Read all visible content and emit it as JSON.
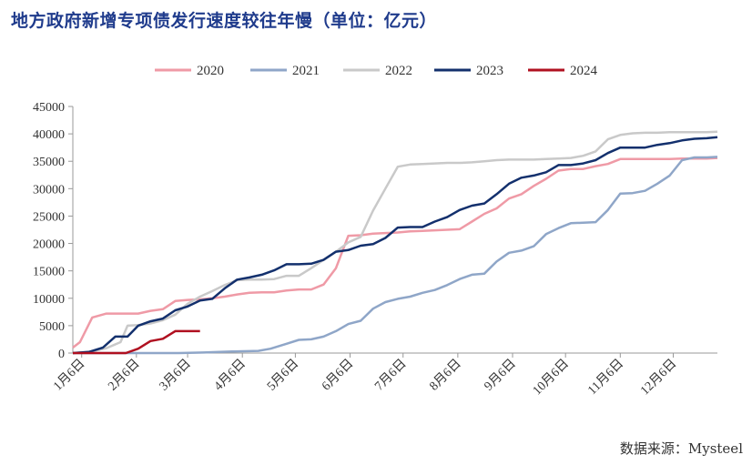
{
  "title": "地方政府新增专项债发行速度较往年慢（单位：亿元）",
  "source": "数据来源：Mysteel",
  "chart_data": {
    "type": "line",
    "title": "地方政府新增专项债发行速度较往年慢（单位：亿元）",
    "x_tick_labels": [
      "1月6日",
      "2月6日",
      "3月6日",
      "4月6日",
      "5月6日",
      "6月6日",
      "7月6日",
      "8月6日",
      "9月6日",
      "10月6日",
      "11月6日",
      "12月6日"
    ],
    "xlim": [
      "01-01",
      "12-31"
    ],
    "ylim": [
      0,
      45000
    ],
    "y_ticks": [
      0,
      5000,
      10000,
      15000,
      20000,
      25000,
      30000,
      35000,
      40000,
      45000
    ],
    "grid": "none",
    "legend_position": "top",
    "series": [
      {
        "name": "2020",
        "color": "#ef9aa6",
        "x": [
          "01-01",
          "01-05",
          "01-12",
          "01-20",
          "01-31",
          "02-07",
          "02-14",
          "02-21",
          "02-28",
          "03-06",
          "03-13",
          "03-20",
          "03-27",
          "04-03",
          "04-10",
          "04-17",
          "04-24",
          "05-01",
          "05-08",
          "05-15",
          "05-22",
          "05-29",
          "06-05",
          "06-12",
          "06-19",
          "06-26",
          "07-03",
          "07-10",
          "07-17",
          "07-24",
          "07-31",
          "08-07",
          "08-14",
          "08-21",
          "08-28",
          "09-04",
          "09-11",
          "09-18",
          "09-25",
          "10-02",
          "10-09",
          "10-16",
          "10-23",
          "10-30",
          "11-06",
          "11-13",
          "11-20",
          "11-27",
          "12-04",
          "12-11",
          "12-18",
          "12-25",
          "12-31"
        ],
        "y": [
          1000,
          2000,
          6500,
          7200,
          7200,
          7200,
          7700,
          8000,
          9500,
          9700,
          9800,
          10000,
          10300,
          10700,
          11000,
          11100,
          11100,
          11400,
          11600,
          11600,
          12500,
          15500,
          21400,
          21500,
          21800,
          21900,
          22000,
          22200,
          22300,
          22400,
          22500,
          22600,
          24000,
          25400,
          26400,
          28200,
          29000,
          30500,
          31800,
          33300,
          33600,
          33600,
          34100,
          34500,
          35400,
          35400,
          35400,
          35400,
          35400,
          35500,
          35500,
          35500,
          35600
        ]
      },
      {
        "name": "2021",
        "color": "#8fa6c8",
        "x": [
          "01-01",
          "01-15",
          "02-01",
          "02-15",
          "03-01",
          "03-15",
          "04-01",
          "04-15",
          "04-22",
          "05-01",
          "05-08",
          "05-15",
          "05-22",
          "05-29",
          "06-05",
          "06-12",
          "06-19",
          "06-26",
          "07-03",
          "07-10",
          "07-17",
          "07-24",
          "07-31",
          "08-07",
          "08-14",
          "08-21",
          "08-28",
          "09-04",
          "09-11",
          "09-18",
          "09-25",
          "10-02",
          "10-09",
          "10-16",
          "10-23",
          "10-30",
          "11-06",
          "11-13",
          "11-20",
          "11-27",
          "12-04",
          "12-11",
          "12-18",
          "12-25",
          "12-31"
        ],
        "y": [
          0,
          0,
          0,
          0,
          0,
          100,
          300,
          400,
          800,
          1700,
          2400,
          2500,
          3000,
          4000,
          5300,
          5900,
          8100,
          9300,
          9900,
          10300,
          11000,
          11500,
          12400,
          13500,
          14300,
          14500,
          16700,
          18300,
          18700,
          19500,
          21700,
          22800,
          23700,
          23800,
          23900,
          26100,
          29100,
          29200,
          29600,
          30900,
          32400,
          35200,
          35700,
          35700,
          35800
        ]
      },
      {
        "name": "2022",
        "color": "#c9c9c9",
        "x": [
          "01-01",
          "01-10",
          "01-20",
          "01-28",
          "02-01",
          "02-07",
          "02-14",
          "02-21",
          "02-28",
          "03-06",
          "03-13",
          "03-20",
          "03-27",
          "04-03",
          "04-10",
          "04-17",
          "04-24",
          "05-01",
          "05-08",
          "05-15",
          "05-22",
          "05-29",
          "06-05",
          "06-12",
          "06-19",
          "06-26",
          "07-03",
          "07-10",
          "07-17",
          "07-24",
          "07-31",
          "08-07",
          "08-14",
          "08-21",
          "08-28",
          "09-04",
          "09-11",
          "09-18",
          "09-25",
          "10-02",
          "10-09",
          "10-16",
          "10-23",
          "10-30",
          "11-06",
          "11-13",
          "11-20",
          "11-27",
          "12-04",
          "12-11",
          "12-18",
          "12-25",
          "12-31"
        ],
        "y": [
          0,
          200,
          900,
          2000,
          5000,
          5100,
          5400,
          6000,
          7000,
          9000,
          10300,
          11300,
          12400,
          13300,
          13400,
          13400,
          13500,
          14100,
          14100,
          15500,
          17000,
          18500,
          20200,
          21200,
          26000,
          30000,
          34000,
          34400,
          34500,
          34600,
          34700,
          34700,
          34800,
          35000,
          35200,
          35300,
          35300,
          35300,
          35400,
          35500,
          35600,
          36000,
          36800,
          39000,
          39800,
          40100,
          40200,
          40200,
          40300,
          40300,
          40300,
          40300,
          40400
        ]
      },
      {
        "name": "2023",
        "color": "#13306d",
        "x": [
          "01-01",
          "01-10",
          "01-18",
          "01-25",
          "02-01",
          "02-07",
          "02-14",
          "02-21",
          "02-28",
          "03-06",
          "03-13",
          "03-20",
          "03-27",
          "04-03",
          "04-10",
          "04-17",
          "04-24",
          "05-01",
          "05-08",
          "05-15",
          "05-22",
          "05-29",
          "06-05",
          "06-12",
          "06-19",
          "06-26",
          "07-03",
          "07-10",
          "07-17",
          "07-24",
          "07-31",
          "08-07",
          "08-14",
          "08-21",
          "08-28",
          "09-04",
          "09-11",
          "09-18",
          "09-25",
          "10-02",
          "10-09",
          "10-16",
          "10-23",
          "10-30",
          "11-06",
          "11-13",
          "11-20",
          "11-27",
          "12-04",
          "12-11",
          "12-18",
          "12-25",
          "12-31"
        ],
        "y": [
          0,
          200,
          1000,
          3000,
          3000,
          5000,
          5800,
          6300,
          7800,
          8500,
          9600,
          9900,
          11800,
          13400,
          13800,
          14300,
          15100,
          16200,
          16200,
          16300,
          17000,
          18500,
          18800,
          19600,
          19900,
          21000,
          22900,
          23000,
          23000,
          24000,
          24800,
          26100,
          26900,
          27300,
          29000,
          30900,
          32000,
          32400,
          33000,
          34300,
          34300,
          34600,
          35200,
          36500,
          37500,
          37500,
          37500,
          38000,
          38300,
          38800,
          39100,
          39200,
          39400
        ]
      },
      {
        "name": "2024",
        "color": "#b01020",
        "x": [
          "01-01",
          "01-10",
          "01-20",
          "01-31",
          "02-07",
          "02-14",
          "02-21",
          "02-28",
          "03-06",
          "03-13"
        ],
        "y": [
          0,
          0,
          0,
          0,
          800,
          2200,
          2600,
          4000,
          4000,
          4000
        ]
      }
    ]
  }
}
